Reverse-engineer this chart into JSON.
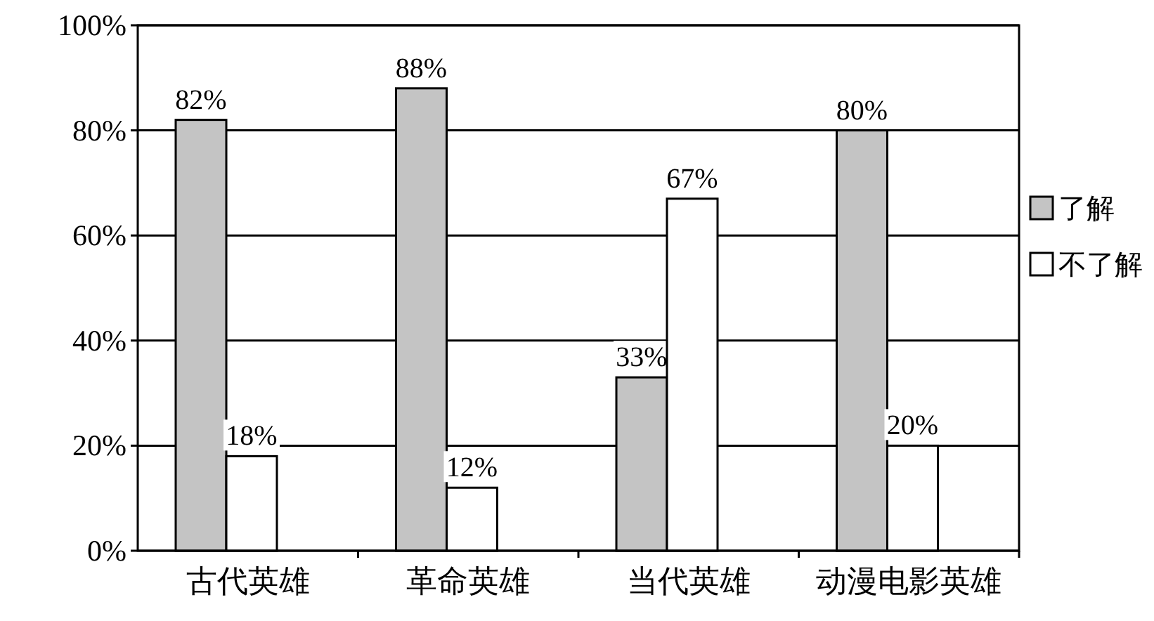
{
  "chart_data": {
    "type": "bar",
    "categories": [
      "古代英雄",
      "革命英雄",
      "当代英雄",
      "动漫电影英雄"
    ],
    "series": [
      {
        "name": "了解",
        "color": "#c4c4c4",
        "values": [
          82,
          88,
          33,
          80
        ],
        "value_labels": [
          "82%",
          "88%",
          "33%",
          "80%"
        ]
      },
      {
        "name": "不了解",
        "color": "#ffffff",
        "values": [
          18,
          12,
          67,
          20
        ],
        "value_labels": [
          "18%",
          "12%",
          "67%",
          "20%"
        ]
      }
    ],
    "ylim": [
      0,
      100
    ],
    "yticks": [
      {
        "value": 0,
        "label": "0%"
      },
      {
        "value": 20,
        "label": "20%"
      },
      {
        "value": 40,
        "label": "40%"
      },
      {
        "value": 60,
        "label": "60%"
      },
      {
        "value": 80,
        "label": "80%"
      },
      {
        "value": 100,
        "label": "100%"
      }
    ],
    "grid": "y",
    "legend": "right"
  }
}
